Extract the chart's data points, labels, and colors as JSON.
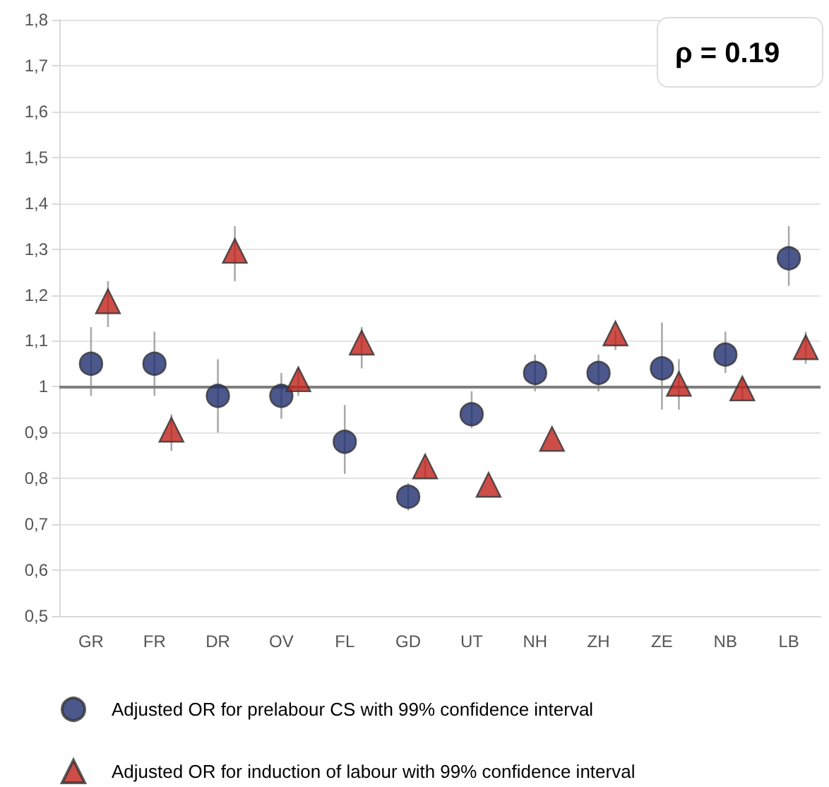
{
  "chart_data": {
    "type": "scatter",
    "categories": [
      "GR",
      "FR",
      "DR",
      "OV",
      "FL",
      "GD",
      "UT",
      "NH",
      "ZH",
      "ZE",
      "NB",
      "LB"
    ],
    "series": [
      {
        "name": "Adjusted OR for prelabour CS with 99% confidence interval",
        "color": "#1f2d6e",
        "marker": "circle",
        "values": [
          1.05,
          1.05,
          0.98,
          0.98,
          0.88,
          0.76,
          0.94,
          1.03,
          1.03,
          1.04,
          1.07,
          1.28
        ],
        "errors": [
          [
            0.98,
            1.13
          ],
          [
            0.98,
            1.12
          ],
          [
            0.9,
            1.06
          ],
          [
            0.93,
            1.03
          ],
          [
            0.81,
            0.96
          ],
          [
            0.73,
            0.79
          ],
          [
            0.91,
            0.99
          ],
          [
            0.99,
            1.07
          ],
          [
            0.99,
            1.07
          ],
          [
            0.95,
            1.14
          ],
          [
            1.03,
            1.12
          ],
          [
            1.22,
            1.35
          ]
        ]
      },
      {
        "name": "Adjusted OR for induction of labour with 99% confidence interval",
        "color": "#c0211a",
        "marker": "triangle",
        "values": [
          1.18,
          0.9,
          1.29,
          1.01,
          1.09,
          0.82,
          0.78,
          0.88,
          1.11,
          1.0,
          0.99,
          1.08
        ],
        "errors": [
          [
            1.13,
            1.23
          ],
          [
            0.86,
            0.94
          ],
          [
            1.23,
            1.35
          ],
          [
            0.98,
            1.04
          ],
          [
            1.04,
            1.13
          ],
          [
            0.8,
            0.84
          ],
          null,
          null,
          [
            1.08,
            1.12
          ],
          [
            0.95,
            1.06
          ],
          [
            0.97,
            1.02
          ],
          [
            1.05,
            1.12
          ]
        ]
      }
    ],
    "ylim": [
      0.5,
      1.8
    ],
    "yticks": [
      {
        "value": 0.5,
        "label": "0,5"
      },
      {
        "value": 0.6,
        "label": "0,6"
      },
      {
        "value": 0.7,
        "label": "0,7"
      },
      {
        "value": 0.8,
        "label": "0,8"
      },
      {
        "value": 0.9,
        "label": "0,9"
      },
      1,
      {
        "value": 1.1,
        "label": "1,1"
      },
      {
        "value": 1.2,
        "label": "1,2"
      },
      {
        "value": 1.3,
        "label": "1,3"
      },
      {
        "value": 1.4,
        "label": "1,4"
      },
      {
        "value": 1.5,
        "label": "1,5"
      },
      {
        "value": 1.6,
        "label": "1,6"
      },
      {
        "value": 1.7,
        "label": "1,7"
      },
      {
        "value": 1.8,
        "label": "1,8"
      }
    ],
    "ref_lines": [
      {
        "axis": "y",
        "value": 1,
        "color": "#7f7f7f"
      }
    ],
    "annotations": [
      "ρ = 0.19"
    ],
    "grid": "y",
    "legend": "bottom"
  }
}
